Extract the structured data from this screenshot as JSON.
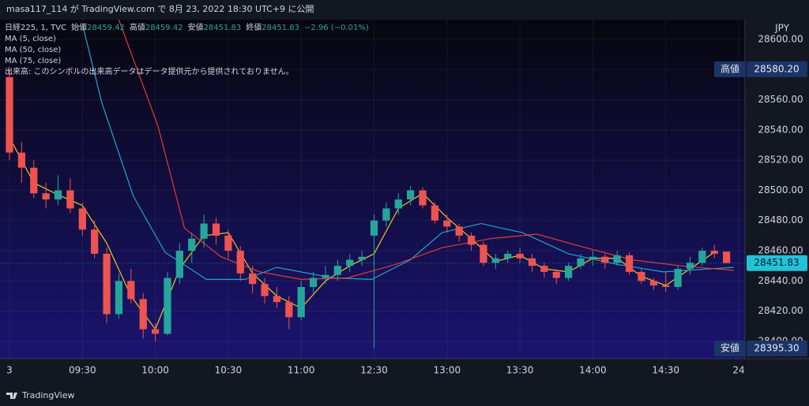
{
  "header": "masa117_114 が TradingView.com で 8月 23, 2022 18:30 UTC+9 に公開",
  "footer": "TradingView",
  "chart_data": {
    "type": "candlestick",
    "symbol": "日経225, 1, TVC",
    "ohlc_legend": {
      "labels": [
        "始値",
        "高値",
        "安値",
        "終値"
      ],
      "values": [
        28459.42,
        28459.42,
        28451.83,
        28451.83
      ],
      "change": "−2.96 (−0.01%)"
    },
    "notice": "出来高: このシンボルの出来高データはデータ提供元から提供されておりません。",
    "currency": "JPY",
    "up_color": "#26a69a",
    "down_color": "#ef5350",
    "x": [
      0,
      5,
      10,
      15,
      20,
      25,
      30,
      35,
      40,
      45,
      50,
      55,
      60,
      65,
      70,
      75,
      80,
      85,
      90,
      95,
      100,
      105,
      110,
      115,
      120,
      125,
      130,
      135,
      140,
      145,
      150,
      155,
      160,
      165,
      170,
      175,
      180,
      185,
      190,
      195,
      200,
      205,
      210,
      215,
      220,
      225,
      230,
      235,
      240,
      245,
      250,
      255,
      260,
      265,
      270,
      275,
      280,
      285,
      290,
      295
    ],
    "open": [
      28575,
      28525,
      28515,
      28498,
      28494,
      28500,
      28488,
      28474,
      28458,
      28418,
      28440,
      28428,
      28408,
      28405,
      28442,
      28460,
      28468,
      28478,
      28470,
      28460,
      28445,
      28438,
      28430,
      28426,
      28416,
      28436,
      28442,
      28444,
      28450,
      28454,
      28470,
      28480,
      28488,
      28494,
      28500,
      28490,
      28480,
      28476,
      28470,
      28464,
      28452,
      28455,
      28458,
      28455,
      28450,
      28446,
      28442,
      28450,
      28455,
      28456,
      28452,
      28457,
      28446,
      28440,
      28437,
      28436,
      28448,
      28452,
      28460,
      28459.42
    ],
    "high": [
      28580.2,
      28532,
      28520,
      28505,
      28510,
      28508,
      28492,
      28480,
      28462,
      28445,
      28448,
      28432,
      28412,
      28446,
      28465,
      28472,
      28484,
      28482,
      28474,
      28463,
      28450,
      28442,
      28436,
      28430,
      28440,
      28446,
      28450,
      28454,
      28458,
      28460,
      28484,
      28492,
      28498,
      28503,
      28502,
      28492,
      28484,
      28478,
      28472,
      28466,
      28458,
      28460,
      28462,
      28458,
      28452,
      28448,
      28452,
      28458,
      28460,
      28458,
      28460,
      28459,
      28448,
      28442,
      28446,
      28450,
      28456,
      28462,
      28464,
      28459.42
    ],
    "low": [
      28520,
      28505,
      28495,
      28488,
      28490,
      28485,
      28470,
      28455,
      28412,
      28415,
      28425,
      28402,
      28400,
      28404,
      28438,
      28452,
      28462,
      28464,
      28455,
      28440,
      28432,
      28425,
      28422,
      28408,
      28414,
      28432,
      28438,
      28440,
      28446,
      28450,
      28395.3,
      28476,
      28484,
      28490,
      28488,
      28478,
      28472,
      28466,
      28460,
      28450,
      28448,
      28452,
      28452,
      28446,
      28442,
      28438,
      28440,
      28448,
      28450,
      28448,
      28450,
      28444,
      28438,
      28434,
      28433,
      28434,
      28444,
      28450,
      28455,
      28451.83
    ],
    "close": [
      28525,
      28515,
      28498,
      28494,
      28500,
      28488,
      28474,
      28458,
      28418,
      28440,
      28428,
      28408,
      28405,
      28442,
      28460,
      28468,
      28478,
      28470,
      28460,
      28445,
      28438,
      28430,
      28426,
      28416,
      28436,
      28442,
      28444,
      28450,
      28454,
      28456,
      28480,
      28488,
      28494,
      28500,
      28490,
      28480,
      28476,
      28470,
      28464,
      28452,
      28455,
      28458,
      28455,
      28450,
      28446,
      28442,
      28450,
      28455,
      28456,
      28452,
      28457,
      28446,
      28440,
      28437,
      28436,
      28448,
      28452,
      28460,
      28458,
      28451.83
    ],
    "ma": [
      {
        "name": "MA (5, close)",
        "color": "#f5c518",
        "x": [
          0,
          10,
          20,
          30,
          40,
          50,
          60,
          70,
          80,
          90,
          100,
          110,
          120,
          130,
          140,
          150,
          160,
          170,
          180,
          190,
          200,
          210,
          220,
          230,
          240,
          250,
          260,
          270,
          280,
          290
        ],
        "values": [
          28535,
          28505,
          28497,
          28490,
          28465,
          28430,
          28408,
          28448,
          28470,
          28472,
          28445,
          28430,
          28422,
          28440,
          28450,
          28458,
          28488,
          28498,
          28482,
          28468,
          28453,
          28457,
          28448,
          28446,
          28455,
          28455,
          28443,
          28437,
          28448,
          28459
        ]
      },
      {
        "name": "MA (50, close)",
        "color": "#1fa7c9",
        "x": [
          30,
          38,
          51,
          64,
          81,
          97,
          110,
          133,
          149,
          165,
          178,
          194,
          211,
          230,
          250,
          269,
          298
        ],
        "values": [
          28610,
          28558,
          28496,
          28459,
          28441,
          28441,
          28449,
          28442,
          28441,
          28454,
          28472,
          28478,
          28472,
          28458,
          28451,
          28446,
          28449
        ]
      },
      {
        "name": "MA (75, close)",
        "color": "#e53935",
        "x": [
          45,
          61,
          72,
          87,
          103,
          120,
          139,
          159,
          178,
          198,
          217,
          237,
          256,
          276,
          298
        ],
        "values": [
          28613,
          28543,
          28475,
          28456,
          28446,
          28441,
          28442,
          28451,
          28462,
          28468,
          28471,
          28462,
          28454,
          28450,
          28447
        ]
      }
    ],
    "xlim": [
      -3.9,
      302.6
    ],
    "xticks": [
      {
        "value": 0,
        "label": "3"
      },
      {
        "value": 30,
        "label": "09:30"
      },
      {
        "value": 60,
        "label": "10:00"
      },
      {
        "value": 90,
        "label": "10:30"
      },
      {
        "value": 120,
        "label": "11:00"
      },
      {
        "value": 150,
        "label": "12:30"
      },
      {
        "value": 180,
        "label": "13:00"
      },
      {
        "value": 210,
        "label": "13:30"
      },
      {
        "value": 240,
        "label": "14:00"
      },
      {
        "value": 270,
        "label": "14:30"
      },
      {
        "value": 300,
        "label": "24"
      }
    ],
    "ylim": [
      28388.5,
      28613
    ],
    "yticks": [
      {
        "value": 28400,
        "label": "28400.00"
      },
      {
        "value": 28420,
        "label": "28420.00"
      },
      {
        "value": 28440,
        "label": "28440.00"
      },
      {
        "value": 28460,
        "label": "28460.00"
      },
      {
        "value": 28480,
        "label": "28480.00"
      },
      {
        "value": 28500,
        "label": "28500.00"
      },
      {
        "value": 28520,
        "label": "28520.00"
      },
      {
        "value": 28540,
        "label": "28540.00"
      },
      {
        "value": 28560,
        "label": "28560.00"
      },
      {
        "value": 28580,
        "label": "28580.00"
      },
      {
        "value": 28600,
        "label": "28600.00"
      }
    ],
    "grid": true,
    "price_labels": [
      {
        "text": "高値",
        "price": {
          "value": 28580.2,
          "label": "28580.20"
        },
        "color": "#1c3466"
      },
      {
        "text": "安値",
        "price": {
          "value": 28395.3,
          "label": "28395.30"
        },
        "color": "#1c3466"
      }
    ],
    "last_price": {
      "value": 28451.83,
      "label": "28451.83"
    },
    "last_color": "#22c3d8"
  }
}
